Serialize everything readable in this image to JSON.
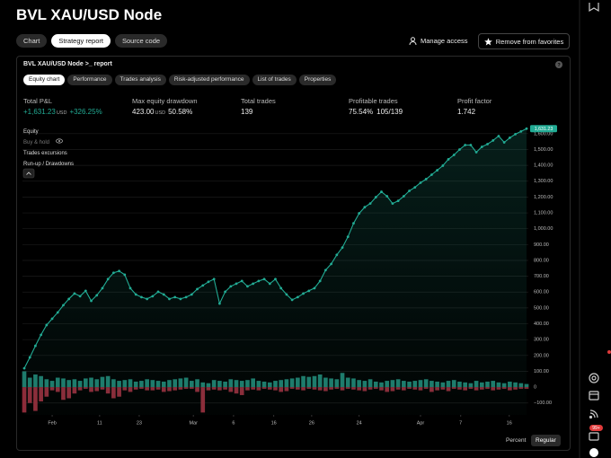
{
  "header": {
    "title": "BVL XAU/USD Node",
    "tabs": [
      "Chart",
      "Strategy report",
      "Source code"
    ],
    "actions": [
      "Manage access",
      "Remove from favorites"
    ]
  },
  "report": {
    "title": "BVL XAU/USD Node >_ report",
    "help": "?",
    "tabs": [
      "Equity chart",
      "Performance",
      "Trades analysis",
      "Risk-adjusted performance",
      "List of trades",
      "Properties"
    ],
    "stats": [
      {
        "label": "Total P&L",
        "value": "+1,631.23",
        "unit": "USD",
        "extra": "+326.25%"
      },
      {
        "label": "Max equity drawdown",
        "value": "423.00",
        "unit": "USD",
        "extra": "50.58%"
      },
      {
        "label": "Total trades",
        "value": "139"
      },
      {
        "label": "Profitable trades",
        "value": "75.54%",
        "extra": "105/139"
      },
      {
        "label": "Profit factor",
        "value": "1.742"
      }
    ]
  },
  "chart_data": {
    "type": "line",
    "grid": true,
    "toggles": [
      "Buy & hold",
      "Trades excursions"
    ],
    "xlim": [
      0,
      90
    ],
    "xticks": [
      {
        "value": 5,
        "label": "Feb"
      },
      {
        "value": 13.5,
        "label": "11"
      },
      {
        "value": 20.6,
        "label": "23"
      },
      {
        "value": 30.3,
        "label": "Mar"
      },
      {
        "value": 37.5,
        "label": "6"
      },
      {
        "value": 44.7,
        "label": "16"
      },
      {
        "value": 51.5,
        "label": "26"
      },
      {
        "value": 60,
        "label": "24"
      },
      {
        "value": 71,
        "label": "Apr"
      },
      {
        "value": 78.2,
        "label": "7"
      },
      {
        "value": 86.9,
        "label": "16"
      }
    ],
    "ylim": [
      -175,
      1650
    ],
    "yticks": [
      {
        "value": -100,
        "label": "−100.00"
      },
      0,
      {
        "value": 100,
        "label": "100.00"
      },
      {
        "value": 200,
        "label": "200.00"
      },
      {
        "value": 300,
        "label": "300.00"
      },
      {
        "value": 400,
        "label": "400.00"
      },
      {
        "value": 500,
        "label": "500.00"
      },
      {
        "value": 600,
        "label": "600.00"
      },
      {
        "value": 700,
        "label": "700.00"
      },
      {
        "value": 800,
        "label": "800.00"
      },
      {
        "value": 900,
        "label": "900.00"
      },
      {
        "value": 1000,
        "label": "1,000.00"
      },
      {
        "value": 1100,
        "label": "1,100.00"
      },
      {
        "value": 1200,
        "label": "1,200.00"
      },
      {
        "value": 1300,
        "label": "1,300.00"
      },
      {
        "value": 1400,
        "label": "1,400.00"
      },
      {
        "value": 1500,
        "label": "1,500.00"
      },
      {
        "value": 1600,
        "label": "1,600.00"
      }
    ],
    "series": [
      {
        "name": "Equity",
        "type": "line",
        "color": "#22ab94",
        "values": [
          119,
          188,
          261,
          330,
          392,
          432,
          472,
          517,
          557,
          591,
          574,
          608,
          545,
          580,
          625,
          682,
          722,
          733,
          710,
          625,
          585,
          568,
          557,
          574,
          602,
          585,
          557,
          568,
          557,
          568,
          585,
          619,
          642,
          665,
          682,
          528,
          602,
          636,
          653,
          670,
          636,
          653,
          670,
          682,
          653,
          682,
          625,
          585,
          551,
          568,
          591,
          608,
          625,
          670,
          739,
          778,
          835,
          881,
          949,
          1034,
          1097,
          1136,
          1159,
          1199,
          1233,
          1205,
          1159,
          1176,
          1205,
          1239,
          1261,
          1290,
          1313,
          1341,
          1369,
          1398,
          1438,
          1466,
          1500,
          1528,
          1528,
          1483,
          1517,
          1534,
          1557,
          1585,
          1545,
          1574,
          1597,
          1614,
          1631.23
        ],
        "value_labels": [
          null,
          null,
          null,
          null,
          null,
          null,
          null,
          null,
          null,
          null,
          null,
          null,
          null,
          null,
          null,
          null,
          null,
          null,
          null,
          null,
          null,
          null,
          null,
          null,
          null,
          null,
          null,
          null,
          null,
          null,
          null,
          null,
          null,
          null,
          null,
          null,
          null,
          null,
          null,
          null,
          null,
          null,
          null,
          null,
          null,
          null,
          null,
          null,
          null,
          null,
          null,
          null,
          null,
          null,
          null,
          null,
          null,
          null,
          null,
          null,
          null,
          null,
          null,
          null,
          null,
          null,
          null,
          null,
          null,
          null,
          null,
          null,
          null,
          null,
          null,
          null,
          null,
          null,
          null,
          null,
          null,
          null,
          null,
          null,
          null,
          null,
          null,
          null,
          null,
          null,
          "1,631.23"
        ]
      },
      {
        "name": "Run-up / Drawdowns",
        "type": "bar",
        "color": "#1e7a6b",
        "drawdown_color": "#8e2a38",
        "values": [
          100,
          60,
          80,
          70,
          50,
          40,
          60,
          55,
          45,
          50,
          40,
          55,
          60,
          50,
          65,
          70,
          50,
          40,
          45,
          50,
          35,
          40,
          50,
          45,
          40,
          35,
          45,
          50,
          55,
          60,
          40,
          50,
          30,
          25,
          45,
          40,
          35,
          50,
          45,
          40,
          45,
          55,
          40,
          35,
          30,
          40,
          45,
          50,
          55,
          60,
          70,
          65,
          70,
          80,
          60,
          55,
          50,
          90,
          60,
          55,
          45,
          40,
          50,
          35,
          30,
          40,
          45,
          50,
          40,
          35,
          40,
          45,
          50,
          40,
          35,
          30,
          40,
          45,
          35,
          30,
          25,
          40,
          30,
          35,
          40,
          30,
          25,
          35,
          30,
          25,
          20
        ],
        "drawdowns": [
          -160,
          -100,
          -150,
          -90,
          -60,
          -20,
          -30,
          -80,
          -70,
          -40,
          -20,
          -10,
          -30,
          -25,
          -15,
          -40,
          -70,
          -60,
          -20,
          -30,
          -15,
          -10,
          -20,
          -20,
          -15,
          -30,
          -25,
          -20,
          -15,
          -10,
          -10,
          -30,
          -160,
          -20,
          -15,
          -20,
          -15,
          -30,
          -40,
          -50,
          -20,
          -15,
          -20,
          -10,
          -15,
          -20,
          -30,
          -25,
          -10,
          -15,
          -20,
          -10,
          -15,
          -20,
          -25,
          -15,
          -10,
          -20,
          -10,
          -15,
          -20,
          -25,
          -15,
          -10,
          -20,
          -30,
          -25,
          -15,
          -20,
          -10,
          -15,
          -20,
          -10,
          -30,
          -20,
          -15,
          -25,
          -10,
          -15,
          -20,
          -10,
          -20,
          -15,
          -10,
          -20,
          -15,
          -10,
          -20,
          -15,
          -10,
          -10
        ]
      }
    ]
  },
  "footer": {
    "scale_buttons": [
      "Percent",
      "Regular"
    ]
  },
  "sidebar": {
    "badge": "99+"
  }
}
